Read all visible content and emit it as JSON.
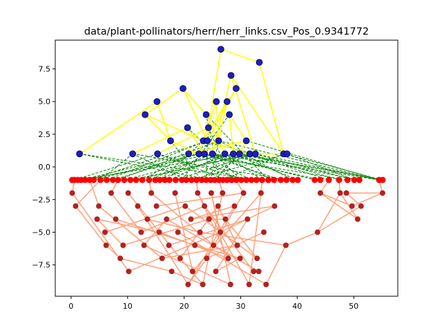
{
  "chart_data": {
    "type": "scatter",
    "title": "data/plant-pollinators/herr/herr_links.csv_Pos_0.9341772",
    "xlabel": "",
    "ylabel": "",
    "xlim": [
      -2.8,
      57.8
    ],
    "ylim": [
      -9.9,
      9.7
    ],
    "xticks": [
      0,
      10,
      20,
      30,
      40,
      50
    ],
    "xtick_labels": [
      "0",
      "10",
      "20",
      "30",
      "40",
      "50"
    ],
    "yticks": [
      -7.5,
      -5.0,
      -2.5,
      0.0,
      2.5,
      5.0,
      7.5
    ],
    "ytick_labels": [
      "−7.5",
      "−5.0",
      "−2.5",
      "0.0",
      "2.5",
      "5.0",
      "7.5"
    ],
    "grid": false,
    "colors": {
      "top_node_fill": "#1f1fb4",
      "top_node_edge": "#000080",
      "top_links": "#ffff00",
      "bottom_node_fill": "#ff0000",
      "bottom_node_dark": "#b22222",
      "bottom_links": "#ffa07a",
      "cross_links": "#008000"
    },
    "top_nodes": [
      [
        1.5,
        1.0
      ],
      [
        10.9,
        1.0
      ],
      [
        13.1,
        4.0
      ],
      [
        15.2,
        5.0
      ],
      [
        15.3,
        1.0
      ],
      [
        17.6,
        2.0
      ],
      [
        19.8,
        6.0
      ],
      [
        20.6,
        3.0
      ],
      [
        20.8,
        1.0
      ],
      [
        22.6,
        1.0
      ],
      [
        23.4,
        2.0
      ],
      [
        23.6,
        1.0
      ],
      [
        23.9,
        4.0
      ],
      [
        24.1,
        2.0
      ],
      [
        24.3,
        3.0
      ],
      [
        25.0,
        1.0
      ],
      [
        25.7,
        5.0
      ],
      [
        26.1,
        2.0
      ],
      [
        26.5,
        9.0
      ],
      [
        27.2,
        1.0
      ],
      [
        27.6,
        5.0
      ],
      [
        28.0,
        4.0
      ],
      [
        28.3,
        7.0
      ],
      [
        28.7,
        1.0
      ],
      [
        29.2,
        6.0
      ],
      [
        29.8,
        1.0
      ],
      [
        31.0,
        2.0
      ],
      [
        31.6,
        1.0
      ],
      [
        32.6,
        1.0
      ],
      [
        33.3,
        8.0
      ],
      [
        37.6,
        1.0
      ],
      [
        38.2,
        1.0
      ]
    ],
    "top_links": [
      [
        1.5,
        1.0,
        15.2,
        5.0
      ],
      [
        15.2,
        5.0,
        17.6,
        2.0
      ],
      [
        17.6,
        2.0,
        13.1,
        4.0
      ],
      [
        13.1,
        4.0,
        19.8,
        6.0
      ],
      [
        19.8,
        6.0,
        23.9,
        4.0
      ],
      [
        10.9,
        1.0,
        20.6,
        3.0
      ],
      [
        20.6,
        3.0,
        23.6,
        1.0
      ],
      [
        15.3,
        1.0,
        24.3,
        3.0
      ],
      [
        24.3,
        3.0,
        26.5,
        9.0
      ],
      [
        26.5,
        9.0,
        33.3,
        8.0
      ],
      [
        33.3,
        8.0,
        37.6,
        1.0
      ],
      [
        37.6,
        1.0,
        28.3,
        7.0
      ],
      [
        28.3,
        7.0,
        25.0,
        1.0
      ],
      [
        25.7,
        5.0,
        26.1,
        2.0
      ],
      [
        26.1,
        2.0,
        27.6,
        5.0
      ],
      [
        27.6,
        5.0,
        23.4,
        2.0
      ],
      [
        23.4,
        2.0,
        29.2,
        6.0
      ],
      [
        29.2,
        6.0,
        24.1,
        2.0
      ],
      [
        28.0,
        4.0,
        31.0,
        2.0
      ],
      [
        31.0,
        2.0,
        20.8,
        1.0
      ],
      [
        22.6,
        1.0,
        25.7,
        5.0
      ],
      [
        23.9,
        4.0,
        27.2,
        1.0
      ],
      [
        24.1,
        2.0,
        31.6,
        1.0
      ],
      [
        17.6,
        2.0,
        22.6,
        1.0
      ],
      [
        13.1,
        4.0,
        23.4,
        2.0
      ],
      [
        19.8,
        6.0,
        24.1,
        2.0
      ],
      [
        28.0,
        4.0,
        28.7,
        1.0
      ],
      [
        29.8,
        1.0,
        31.0,
        2.0
      ],
      [
        32.6,
        1.0,
        28.3,
        7.0
      ],
      [
        38.2,
        1.0,
        31.6,
        1.0
      ]
    ],
    "bottom_nodes": [
      [
        0.2,
        -1.0
      ],
      [
        0.6,
        -1.0
      ],
      [
        1.2,
        -1.0
      ],
      [
        1.8,
        -1.0
      ],
      [
        2.5,
        -1.0
      ],
      [
        3.3,
        -1.0
      ],
      [
        4.0,
        -1.0
      ],
      [
        5.2,
        -1.0
      ],
      [
        6.3,
        -1.0
      ],
      [
        7.4,
        -1.0
      ],
      [
        8.3,
        -1.0
      ],
      [
        9.4,
        -1.0
      ],
      [
        10.5,
        -1.0
      ],
      [
        11.5,
        -1.0
      ],
      [
        12.6,
        -1.0
      ],
      [
        13.8,
        -1.0
      ],
      [
        14.9,
        -1.0
      ],
      [
        15.7,
        -1.0
      ],
      [
        16.6,
        -1.0
      ],
      [
        17.4,
        -1.0
      ],
      [
        18.5,
        -1.0
      ],
      [
        19.6,
        -1.0
      ],
      [
        20.4,
        -1.0
      ],
      [
        21.3,
        -1.0
      ],
      [
        22.2,
        -1.0
      ],
      [
        23.1,
        -1.0
      ],
      [
        23.9,
        -1.0
      ],
      [
        24.7,
        -1.0
      ],
      [
        25.4,
        -1.0
      ],
      [
        26.2,
        -1.0
      ],
      [
        26.9,
        -1.0
      ],
      [
        27.6,
        -1.0
      ],
      [
        28.4,
        -1.0
      ],
      [
        29.2,
        -1.0
      ],
      [
        30.1,
        -1.0
      ],
      [
        31.0,
        -1.0
      ],
      [
        31.9,
        -1.0
      ],
      [
        32.8,
        -1.0
      ],
      [
        33.8,
        -1.0
      ],
      [
        34.9,
        -1.0
      ],
      [
        35.9,
        -1.0
      ],
      [
        37.1,
        -1.0
      ],
      [
        38.1,
        -1.0
      ],
      [
        39.2,
        -1.0
      ],
      [
        40.1,
        -1.0
      ],
      [
        43.1,
        -1.0
      ],
      [
        44.1,
        -1.0
      ],
      [
        45.6,
        -1.0
      ],
      [
        47.4,
        -1.0
      ],
      [
        48.9,
        -1.0
      ],
      [
        50.1,
        -1.0
      ],
      [
        51.0,
        -1.0
      ],
      [
        54.5,
        -1.0
      ],
      [
        55.1,
        -1.0
      ]
    ],
    "bottom_dark_nodes": [
      [
        0.2,
        -2.0
      ],
      [
        0.8,
        -3.0
      ],
      [
        4.6,
        -4.0
      ],
      [
        4.9,
        -3.0
      ],
      [
        6.0,
        -5.0
      ],
      [
        6.2,
        -6.0
      ],
      [
        7.1,
        -2.0
      ],
      [
        7.9,
        -4.0
      ],
      [
        8.7,
        -7.0
      ],
      [
        9.2,
        -6.0
      ],
      [
        10.1,
        -2.0
      ],
      [
        10.2,
        -8.0
      ],
      [
        11.8,
        -3.0
      ],
      [
        12.4,
        -5.0
      ],
      [
        12.9,
        -6.0
      ],
      [
        13.5,
        -4.0
      ],
      [
        14.2,
        -2.0
      ],
      [
        15.1,
        -3.0
      ],
      [
        15.6,
        -5.0
      ],
      [
        16.1,
        -7.0
      ],
      [
        16.9,
        -4.0
      ],
      [
        17.3,
        -6.0
      ],
      [
        17.8,
        -8.0
      ],
      [
        18.4,
        -2.0
      ],
      [
        18.9,
        -5.0
      ],
      [
        19.3,
        -7.0
      ],
      [
        20.2,
        -3.0
      ],
      [
        20.7,
        -9.0
      ],
      [
        21.2,
        -4.0
      ],
      [
        21.5,
        -8.0
      ],
      [
        21.9,
        -6.0
      ],
      [
        22.4,
        -2.0
      ],
      [
        22.8,
        -5.0
      ],
      [
        23.3,
        -9.0
      ],
      [
        23.6,
        -3.0
      ],
      [
        24.0,
        -7.0
      ],
      [
        24.4,
        -4.0
      ],
      [
        24.8,
        -2.0
      ],
      [
        25.2,
        -6.0
      ],
      [
        25.6,
        -8.0
      ],
      [
        26.0,
        -3.0
      ],
      [
        26.4,
        -5.0
      ],
      [
        26.8,
        -2.0
      ],
      [
        27.3,
        -4.0
      ],
      [
        27.8,
        -7.0
      ],
      [
        28.2,
        -9.0
      ],
      [
        28.9,
        -3.0
      ],
      [
        29.4,
        -6.0
      ],
      [
        29.9,
        -7.0
      ],
      [
        30.5,
        -2.0
      ],
      [
        31.2,
        -4.0
      ],
      [
        31.5,
        -9.0
      ],
      [
        32.3,
        -8.0
      ],
      [
        32.9,
        -7.0
      ],
      [
        33.2,
        -8.0
      ],
      [
        33.6,
        -2.0
      ],
      [
        34.1,
        -5.0
      ],
      [
        34.5,
        -9.0
      ],
      [
        36.0,
        -3.0
      ],
      [
        38.0,
        -6.0
      ],
      [
        43.6,
        -5.0
      ],
      [
        44.1,
        -2.0
      ],
      [
        47.6,
        -2.0
      ],
      [
        48.7,
        -2.0
      ],
      [
        49.7,
        -3.0
      ],
      [
        50.7,
        -4.0
      ],
      [
        51.3,
        -3.0
      ],
      [
        55.1,
        -2.0
      ]
    ],
    "bottom_links": [
      [
        0.2,
        -2.0,
        10.2,
        -8.0
      ],
      [
        0.8,
        -3.0,
        6.2,
        -6.0
      ],
      [
        4.6,
        -4.0,
        15.6,
        -5.0
      ],
      [
        4.9,
        -3.0,
        16.1,
        -7.0
      ],
      [
        6.0,
        -5.0,
        20.2,
        -3.0
      ],
      [
        7.1,
        -2.0,
        12.4,
        -5.0
      ],
      [
        7.9,
        -4.0,
        21.9,
        -6.0
      ],
      [
        8.7,
        -7.0,
        17.8,
        -8.0
      ],
      [
        9.2,
        -6.0,
        24.4,
        -4.0
      ],
      [
        10.1,
        -2.0,
        19.3,
        -7.0
      ],
      [
        10.2,
        -8.0,
        26.4,
        -5.0
      ],
      [
        11.8,
        -3.0,
        20.7,
        -9.0
      ],
      [
        12.4,
        -5.0,
        23.6,
        -3.0
      ],
      [
        12.9,
        -6.0,
        28.2,
        -9.0
      ],
      [
        13.5,
        -4.0,
        22.8,
        -5.0
      ],
      [
        14.2,
        -2.0,
        25.2,
        -6.0
      ],
      [
        15.1,
        -3.0,
        30.5,
        -2.0
      ],
      [
        15.6,
        -5.0,
        27.8,
        -7.0
      ],
      [
        16.1,
        -7.0,
        29.4,
        -6.0
      ],
      [
        16.9,
        -4.0,
        33.2,
        -8.0
      ],
      [
        17.3,
        -6.0,
        31.2,
        -4.0
      ],
      [
        17.8,
        -8.0,
        23.3,
        -9.0
      ],
      [
        18.4,
        -2.0,
        21.5,
        -8.0
      ],
      [
        18.9,
        -5.0,
        34.5,
        -9.0
      ],
      [
        19.3,
        -7.0,
        26.0,
        -3.0
      ],
      [
        20.2,
        -3.0,
        32.9,
        -7.0
      ],
      [
        20.7,
        -9.0,
        28.9,
        -3.0
      ],
      [
        21.2,
        -4.0,
        36.0,
        -3.0
      ],
      [
        21.5,
        -8.0,
        33.6,
        -2.0
      ],
      [
        21.9,
        -6.0,
        29.9,
        -7.0
      ],
      [
        22.4,
        -2.0,
        31.5,
        -9.0
      ],
      [
        22.8,
        -5.0,
        38.0,
        -6.0
      ],
      [
        23.3,
        -9.0,
        26.8,
        -2.0
      ],
      [
        23.6,
        -3.0,
        32.3,
        -8.0
      ],
      [
        24.0,
        -7.0,
        34.1,
        -5.0
      ],
      [
        24.4,
        -4.0,
        27.3,
        -4.0
      ],
      [
        24.8,
        -2.0,
        28.2,
        -9.0
      ],
      [
        25.2,
        -6.0,
        33.2,
        -8.0
      ],
      [
        25.6,
        -8.0,
        31.2,
        -4.0
      ],
      [
        26.0,
        -3.0,
        29.4,
        -6.0
      ],
      [
        26.4,
        -5.0,
        24.8,
        -2.0
      ],
      [
        27.3,
        -4.0,
        32.9,
        -7.0
      ],
      [
        27.8,
        -7.0,
        22.4,
        -2.0
      ],
      [
        28.9,
        -3.0,
        21.2,
        -4.0
      ],
      [
        29.9,
        -7.0,
        25.6,
        -8.0
      ],
      [
        30.5,
        -2.0,
        24.0,
        -7.0
      ],
      [
        31.5,
        -9.0,
        33.6,
        -2.0
      ],
      [
        34.5,
        -9.0,
        38.0,
        -6.0
      ],
      [
        36.0,
        -3.0,
        26.4,
        -5.0
      ],
      [
        38.0,
        -6.0,
        43.6,
        -5.0
      ],
      [
        43.6,
        -5.0,
        47.6,
        -2.0
      ],
      [
        44.1,
        -2.0,
        49.7,
        -3.0
      ],
      [
        47.6,
        -2.0,
        50.7,
        -4.0
      ],
      [
        48.7,
        -2.0,
        51.3,
        -3.0
      ],
      [
        49.7,
        -3.0,
        55.1,
        -2.0
      ],
      [
        50.7,
        -4.0,
        44.1,
        -2.0
      ],
      [
        51.3,
        -3.0,
        43.6,
        -5.0
      ],
      [
        55.1,
        -2.0,
        48.7,
        -2.0
      ],
      [
        0.8,
        -3.0,
        5.2,
        -1.0
      ],
      [
        0.2,
        -2.0,
        0.6,
        -1.0
      ],
      [
        4.9,
        -3.0,
        3.3,
        -1.0
      ],
      [
        7.1,
        -2.0,
        8.3,
        -1.0
      ],
      [
        14.2,
        -2.0,
        13.8,
        -1.0
      ],
      [
        22.4,
        -2.0,
        22.2,
        -1.0
      ],
      [
        26.8,
        -2.0,
        26.2,
        -1.0
      ],
      [
        30.5,
        -2.0,
        29.2,
        -1.0
      ],
      [
        33.6,
        -2.0,
        33.8,
        -1.0
      ],
      [
        44.1,
        -2.0,
        45.6,
        -1.0
      ],
      [
        47.6,
        -2.0,
        47.4,
        -1.0
      ],
      [
        55.1,
        -2.0,
        54.5,
        -1.0
      ],
      [
        9.2,
        -6.0,
        4.6,
        -4.0
      ],
      [
        6.2,
        -6.0,
        8.7,
        -7.0
      ],
      [
        12.9,
        -6.0,
        16.9,
        -4.0
      ],
      [
        20.7,
        -9.0,
        24.0,
        -7.0
      ],
      [
        23.3,
        -9.0,
        19.3,
        -7.0
      ]
    ],
    "cross_links": [
      [
        1.5,
        1.0,
        24.7,
        -1.0
      ],
      [
        1.5,
        1.0,
        32.8,
        -1.0
      ],
      [
        10.9,
        1.0,
        5.2,
        -1.0
      ],
      [
        10.9,
        1.0,
        20.4,
        -1.0
      ],
      [
        10.9,
        1.0,
        38.1,
        -1.0
      ],
      [
        15.3,
        1.0,
        0.6,
        -1.0
      ],
      [
        15.3,
        1.0,
        31.0,
        -1.0
      ],
      [
        20.8,
        1.0,
        12.6,
        -1.0
      ],
      [
        20.8,
        1.0,
        48.9,
        -1.0
      ],
      [
        22.6,
        1.0,
        7.4,
        -1.0
      ],
      [
        22.6,
        1.0,
        29.2,
        -1.0
      ],
      [
        23.6,
        1.0,
        44.1,
        -1.0
      ],
      [
        23.6,
        1.0,
        16.6,
        -1.0
      ],
      [
        25.0,
        1.0,
        2.5,
        -1.0
      ],
      [
        25.0,
        1.0,
        54.5,
        -1.0
      ],
      [
        25.0,
        1.0,
        35.9,
        -1.0
      ],
      [
        27.2,
        1.0,
        9.4,
        -1.0
      ],
      [
        27.2,
        1.0,
        51.0,
        -1.0
      ],
      [
        28.7,
        1.0,
        14.9,
        -1.0
      ],
      [
        28.7,
        1.0,
        40.1,
        -1.0
      ],
      [
        29.8,
        1.0,
        1.2,
        -1.0
      ],
      [
        29.8,
        1.0,
        55.1,
        -1.0
      ],
      [
        31.6,
        1.0,
        11.5,
        -1.0
      ],
      [
        31.6,
        1.0,
        47.4,
        -1.0
      ],
      [
        32.6,
        1.0,
        18.5,
        -1.0
      ],
      [
        32.6,
        1.0,
        54.5,
        -1.0
      ],
      [
        37.6,
        1.0,
        26.9,
        -1.0
      ],
      [
        37.6,
        1.0,
        55.1,
        -1.0
      ],
      [
        38.2,
        1.0,
        50.1,
        -1.0
      ],
      [
        38.2,
        1.0,
        21.3,
        -1.0
      ],
      [
        24.1,
        2.0,
        3.3,
        -1.0
      ],
      [
        24.1,
        2.0,
        45.6,
        -1.0
      ],
      [
        23.4,
        2.0,
        15.7,
        -1.0
      ],
      [
        26.1,
        2.0,
        39.2,
        -1.0
      ],
      [
        26.1,
        2.0,
        8.3,
        -1.0
      ],
      [
        31.0,
        2.0,
        54.5,
        -1.0
      ],
      [
        17.6,
        2.0,
        23.1,
        -1.0
      ],
      [
        24.3,
        3.0,
        28.4,
        -1.0
      ],
      [
        20.6,
        3.0,
        30.1,
        -1.0
      ],
      [
        23.9,
        4.0,
        34.9,
        -1.0
      ],
      [
        28.0,
        4.0,
        19.6,
        -1.0
      ],
      [
        26.1,
        2.0,
        54.5,
        -1.0
      ],
      [
        25.0,
        1.0,
        43.1,
        -1.0
      ],
      [
        22.6,
        1.0,
        4.0,
        -1.0
      ],
      [
        27.2,
        1.0,
        17.4,
        -1.0
      ],
      [
        23.6,
        1.0,
        37.1,
        -1.0
      ],
      [
        28.7,
        1.0,
        55.1,
        -1.0
      ],
      [
        20.8,
        1.0,
        1.8,
        -1.0
      ],
      [
        31.6,
        1.0,
        22.2,
        -1.0
      ],
      [
        29.8,
        1.0,
        25.4,
        -1.0
      ],
      [
        24.1,
        2.0,
        6.3,
        -1.0
      ],
      [
        23.4,
        2.0,
        50.1,
        -1.0
      ],
      [
        32.6,
        1.0,
        10.5,
        -1.0
      ],
      [
        15.3,
        1.0,
        27.6,
        -1.0
      ],
      [
        25.0,
        1.0,
        13.8,
        -1.0
      ],
      [
        27.2,
        1.0,
        33.8,
        -1.0
      ],
      [
        22.6,
        1.0,
        31.9,
        -1.0
      ],
      [
        26.1,
        2.0,
        24.7,
        -1.0
      ],
      [
        24.3,
        3.0,
        23.9,
        -1.0
      ],
      [
        23.9,
        4.0,
        26.2,
        -1.0
      ]
    ]
  }
}
